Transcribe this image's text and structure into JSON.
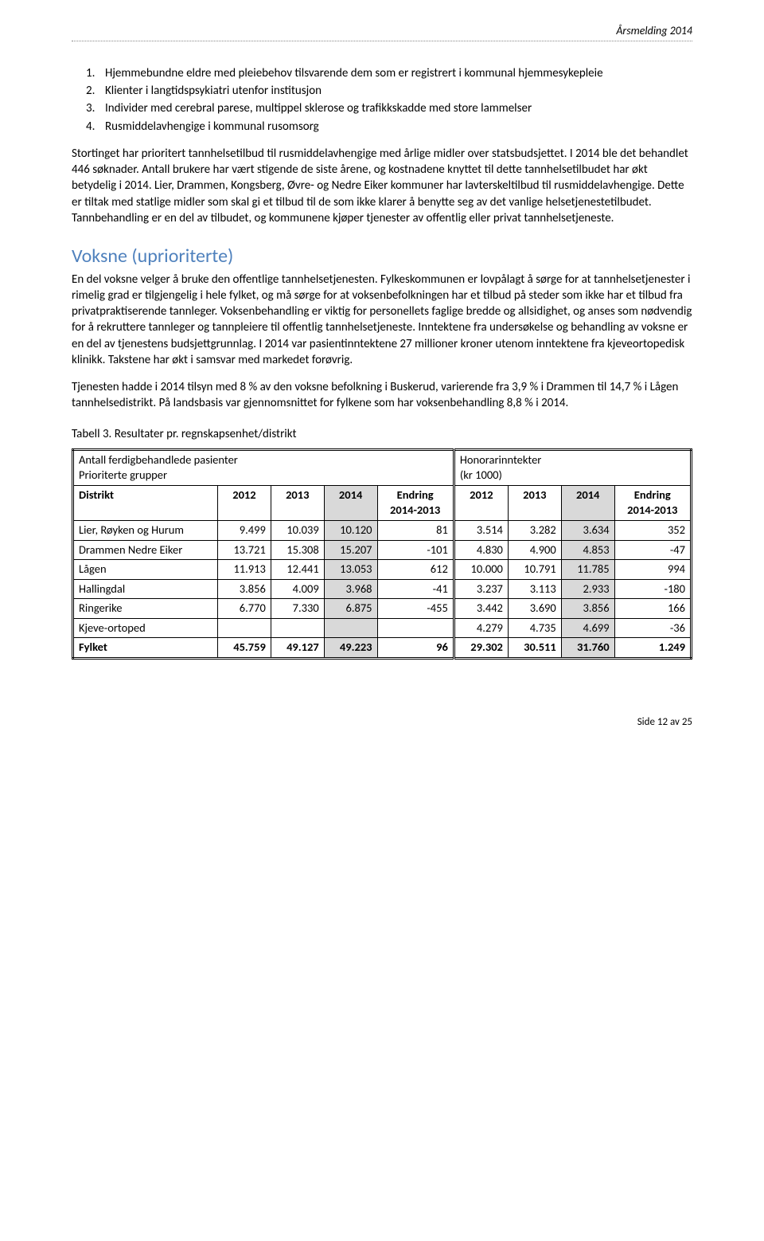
{
  "header": {
    "title": "Årsmelding 2014"
  },
  "list": {
    "items": [
      {
        "n": "1.",
        "text": "Hjemmebundne eldre med pleiebehov tilsvarende dem som er registrert i kommunal hjemmesykepleie"
      },
      {
        "n": "2.",
        "text": "Klienter i langtidspsykiatri utenfor institusjon"
      },
      {
        "n": "3.",
        "text": "Individer med cerebral parese, multippel sklerose og trafikkskadde med store lammelser"
      },
      {
        "n": "4.",
        "text": "Rusmiddelavhengige i kommunal rusomsorg"
      }
    ]
  },
  "para1": "Stortinget har prioritert tannhelsetilbud til rusmiddelavhengige med årlige midler over statsbudsjettet. I 2014 ble det behandlet 446 søknader. Antall brukere  har vært stigende de siste årene, og kostnadene knyttet til dette tannhelsetilbudet har økt betydelig i 2014. Lier, Drammen, Kongsberg, Øvre- og Nedre Eiker kommuner har lavterskeltilbud til rusmiddelavhengige. Dette er tiltak med statlige midler som skal gi et tilbud til de som ikke klarer å benytte seg av det vanlige helsetjenestetilbudet. Tannbehandling er en del av tilbudet, og kommunene kjøper tjenester av offentlig eller privat tannhelsetjeneste.",
  "section2": {
    "heading": "Voksne (uprioriterte)",
    "para_a": "En del voksne velger å bruke  den offentlige tannhelsetjenesten. Fylkeskommunen er lovpålagt å sørge for at tannhelsetjenester i rimelig grad er tilgjengelig i hele fylket, og må sørge for at voksenbefolkningen har et tilbud på steder som ikke har et tilbud fra privatpraktiserende tannleger. Voksenbehandling er viktig for personellets faglige bredde og allsidighet, og anses som nødvendig for å rekruttere tannleger og tannpleiere til offentlig tannhelsetjeneste. Inntektene fra undersøkelse og behandling av voksne er en del av tjenestens budsjettgrunnlag. I 2014 var pasientinntektene 27 millioner kroner utenom inntektene fra kjeveortopedisk klinikk. Takstene har økt i samsvar med markedet forøvrig.",
    "para_b": "Tjenesten hadde i 2014 tilsyn med 8 % av den voksne befolkning i Buskerud, varierende fra 3,9 % i Drammen til 14,7 % i Lågen tannhelsedistrikt. På landsbasis var gjennomsnittet for fylkene som har voksenbehandling 8,8 % i 2014."
  },
  "table": {
    "title": "Tabell 3. Resultater pr. regnskapsenhet/distrikt",
    "left_header_line1": "Antall ferdigbehandlede pasienter",
    "left_header_line2": "Prioriterte grupper",
    "right_header_line1": "Honorarinntekter",
    "right_header_line2": "(kr 1000)",
    "col_distrikt": "Distrikt",
    "cols_years": [
      "2012",
      "2013",
      "2014"
    ],
    "col_endring_line1": "Endring",
    "col_endring_line2": "2014-2013",
    "rows": [
      {
        "name": "Lier, Røyken og Hurum",
        "a": [
          "9.499",
          "10.039",
          "10.120",
          "81"
        ],
        "b": [
          "3.514",
          "3.282",
          "3.634",
          "352"
        ]
      },
      {
        "name": "Drammen Nedre Eiker",
        "a": [
          "13.721",
          "15.308",
          "15.207",
          "-101"
        ],
        "b": [
          "4.830",
          "4.900",
          "4.853",
          "-47"
        ]
      },
      {
        "name": "Lågen",
        "a": [
          "11.913",
          "12.441",
          "13.053",
          "612"
        ],
        "b": [
          "10.000",
          "10.791",
          "11.785",
          "994"
        ]
      },
      {
        "name": "Hallingdal",
        "a": [
          "3.856",
          "4.009",
          "3.968",
          "-41"
        ],
        "b": [
          "3.237",
          "3.113",
          "2.933",
          "-180"
        ]
      },
      {
        "name": "Ringerike",
        "a": [
          "6.770",
          "7.330",
          "6.875",
          "-455"
        ],
        "b": [
          "3.442",
          "3.690",
          "3.856",
          "166"
        ]
      },
      {
        "name": "Kjeve-ortoped",
        "a": [
          "",
          "",
          "",
          ""
        ],
        "b": [
          "4.279",
          "4.735",
          "4.699",
          "-36"
        ]
      }
    ],
    "total": {
      "name": "Fylket",
      "a": [
        "45.759",
        "49.127",
        "49.223",
        "96"
      ],
      "b": [
        "29.302",
        "30.511",
        "31.760",
        "1.249"
      ]
    }
  },
  "footer": {
    "text": "Side 12 av 25"
  },
  "colors": {
    "heading": "#4f81bd",
    "shade": "#d9d9d9",
    "text": "#000000",
    "bg": "#ffffff"
  }
}
